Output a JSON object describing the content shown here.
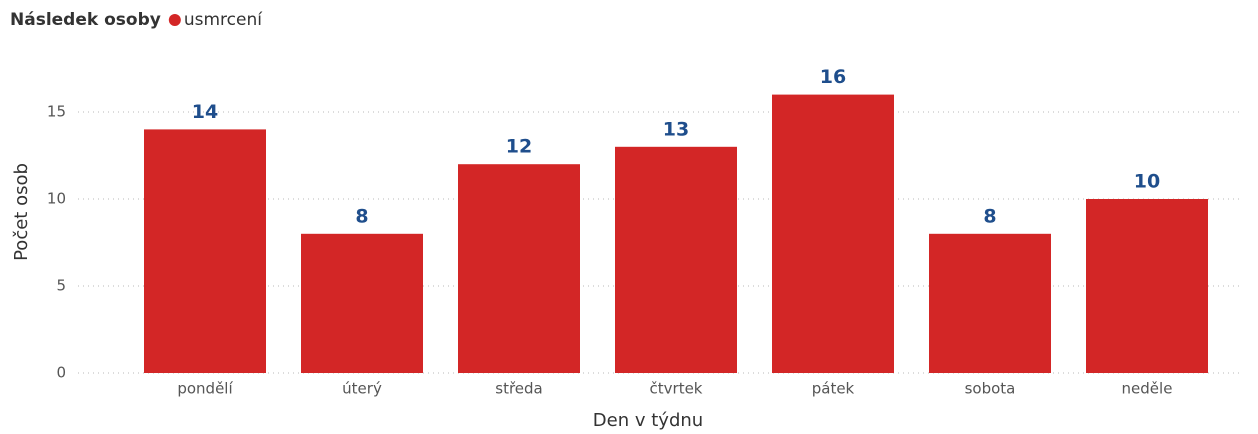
{
  "chart_data": {
    "type": "bar",
    "legend_title": "Následek osoby",
    "x_label": "Den v týdnu",
    "y_label": "Počet osob",
    "categories": [
      "pondělí",
      "úterý",
      "středa",
      "čtvrtek",
      "pátek",
      "sobota",
      "neděle"
    ],
    "series": [
      {
        "name": "usmrcení",
        "color": "#d32626",
        "values": [
          14,
          8,
          12,
          13,
          16,
          8,
          10
        ]
      }
    ],
    "ylim": [
      0,
      17.5
    ],
    "yticks": [
      0,
      5,
      10,
      15
    ],
    "grid": true,
    "legend": "top-left"
  }
}
